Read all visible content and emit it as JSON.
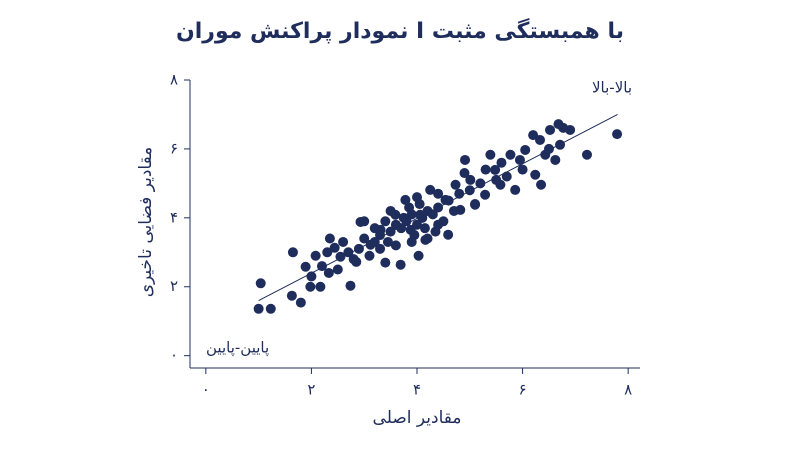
{
  "chart_data": {
    "type": "scatter",
    "title": "نمودار پراکنش موران I با همبستگی مثبت",
    "x_label": "مقادیر اصلی",
    "y_label": "مقادیر فضایی تاخیری",
    "annotations": [
      "بالا-بالا",
      "پایین-پایین"
    ],
    "color": "#1f2d5c",
    "xlim": [
      -0.3,
      8.3
    ],
    "ylim": [
      -0.3,
      8.0
    ],
    "xticks": [
      {
        "value": 0,
        "label": "۰"
      },
      {
        "value": 2,
        "label": "۲"
      },
      {
        "value": 4,
        "label": "۴"
      },
      {
        "value": 6,
        "label": "۶"
      },
      {
        "value": 8,
        "label": "۸"
      }
    ],
    "yticks": [
      {
        "value": 0,
        "label": "۰"
      },
      {
        "value": 2,
        "label": "۲"
      },
      {
        "value": 4,
        "label": "۴"
      },
      {
        "value": 6,
        "label": "۶"
      },
      {
        "value": 8,
        "label": "۸"
      }
    ],
    "trend_line": {
      "x": [
        1.0,
        7.8
      ],
      "y": [
        1.6,
        7.0
      ]
    },
    "x": [
      1.0,
      1.23,
      1.04,
      1.63,
      1.8,
      1.65,
      1.89,
      1.98,
      2.17,
      2.08,
      2.33,
      2.44,
      2.74,
      2.55,
      2.93,
      2.85,
      3.12,
      3.31,
      3.4,
      3.69,
      4.03,
      3.59,
      3.78,
      3.88,
      4.06,
      4.16,
      4.25,
      4.4,
      4.54,
      4.59,
      4.73,
      4.82,
      4.91,
      5.01,
      5.1,
      5.29,
      5.39,
      5.48,
      5.58,
      5.77,
      5.86,
      5.95,
      6.05,
      6.24,
      6.33,
      6.43,
      6.62,
      6.71,
      6.77,
      6.9,
      6.68,
      7.22,
      7.79,
      6.2,
      6.52,
      6.35,
      3.8,
      3.9,
      4.0,
      4.1,
      3.7,
      3.85,
      4.2,
      3.95,
      4.05,
      3.6,
      4.3,
      3.75,
      4.15,
      3.5,
      4.0,
      3.3,
      3.4,
      3.2,
      3.0,
      2.9,
      3.1,
      3.6,
      4.4,
      4.6,
      4.7,
      4.8,
      5.0,
      5.2,
      4.9,
      5.3,
      5.5,
      5.1,
      4.5,
      3.5,
      3.3,
      2.7,
      2.6,
      2.3,
      2.2,
      2.0,
      2.5,
      2.8,
      3.2,
      4.4,
      4.2,
      3.9,
      5.6,
      5.7,
      6.0,
      6.5,
      3.45,
      4.35,
      2.35,
      3.0
    ],
    "y": [
      1.36,
      1.36,
      2.1,
      1.74,
      1.54,
      3.0,
      2.58,
      2.0,
      2.0,
      2.9,
      2.4,
      3.13,
      2.03,
      2.87,
      3.88,
      2.72,
      3.22,
      3.65,
      2.7,
      2.64,
      2.9,
      4.09,
      4.52,
      3.65,
      4.09,
      3.36,
      4.81,
      3.8,
      4.52,
      3.51,
      4.96,
      4.23,
      5.68,
      5.1,
      4.38,
      4.67,
      5.83,
      5.39,
      4.96,
      5.83,
      4.81,
      5.68,
      5.97,
      5.25,
      6.26,
      5.83,
      5.68,
      6.12,
      6.61,
      6.55,
      6.72,
      5.83,
      6.43,
      6.4,
      6.55,
      4.96,
      3.9,
      4.1,
      3.8,
      4.0,
      3.7,
      4.3,
      4.2,
      3.5,
      4.4,
      3.8,
      4.1,
      4.0,
      3.7,
      3.6,
      4.6,
      3.5,
      3.9,
      3.3,
      3.4,
      3.1,
      2.9,
      3.2,
      4.3,
      4.5,
      4.2,
      4.7,
      4.8,
      5.0,
      5.3,
      5.4,
      5.1,
      4.4,
      3.9,
      4.2,
      3.1,
      3.0,
      3.3,
      3.0,
      2.6,
      2.3,
      2.5,
      2.8,
      3.7,
      4.7,
      3.4,
      3.3,
      5.6,
      5.2,
      5.4,
      6.0,
      3.3,
      3.6,
      3.4,
      3.9
    ]
  }
}
